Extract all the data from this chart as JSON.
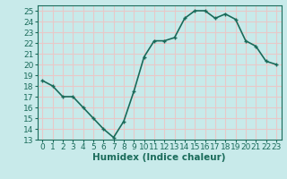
{
  "x": [
    0,
    1,
    2,
    3,
    4,
    5,
    6,
    7,
    8,
    9,
    10,
    11,
    12,
    13,
    14,
    15,
    16,
    17,
    18,
    19,
    20,
    21,
    22,
    23
  ],
  "y": [
    18.5,
    18,
    17,
    17,
    16,
    15,
    14,
    13.2,
    14.7,
    17.5,
    20.7,
    22.2,
    22.2,
    22.5,
    24.3,
    25,
    25,
    24.3,
    24.7,
    24.2,
    22.2,
    21.7,
    20.3,
    20
  ],
  "line_color": "#1a6b5a",
  "marker": "+",
  "marker_size": 3,
  "bg_color": "#c8eaea",
  "grid_color": "#e8c8c8",
  "xlabel": "Humidex (Indice chaleur)",
  "ylim": [
    13,
    25.5
  ],
  "xlim": [
    -0.5,
    23.5
  ],
  "yticks": [
    13,
    14,
    15,
    16,
    17,
    18,
    19,
    20,
    21,
    22,
    23,
    24,
    25
  ],
  "xticks": [
    0,
    1,
    2,
    3,
    4,
    5,
    6,
    7,
    8,
    9,
    10,
    11,
    12,
    13,
    14,
    15,
    16,
    17,
    18,
    19,
    20,
    21,
    22,
    23
  ],
  "xlabel_fontsize": 7.5,
  "tick_fontsize": 6.5,
  "line_width": 1.2
}
